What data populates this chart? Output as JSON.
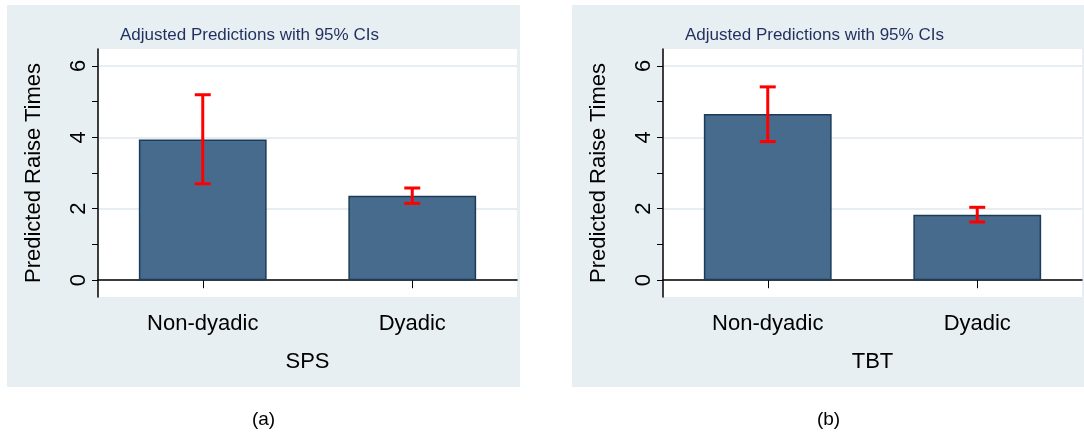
{
  "chart_data": [
    {
      "type": "bar",
      "title": "Adjusted Predictions with 95% CIs",
      "xlabel": "SPS",
      "ylabel": "Predicted Raise Times",
      "categories": [
        "Non-dyadic",
        "Dyadic"
      ],
      "values": [
        3.94,
        2.36
      ],
      "errors": [
        [
          2.7,
          5.19
        ],
        [
          2.15,
          2.58
        ]
      ],
      "color": "#476b8d",
      "ylim": [
        -0.47,
        6.47
      ],
      "yticks": [
        0,
        {
          "value": 1,
          "label": null
        },
        2,
        {
          "value": 3,
          "label": null
        },
        4,
        {
          "value": 5,
          "label": null
        },
        6
      ],
      "grid": "y",
      "annotations": [
        "(a)"
      ]
    },
    {
      "type": "bar",
      "title": "Adjusted Predictions with 95% CIs",
      "xlabel": "TBT",
      "ylabel": "Predicted Raise Times",
      "categories": [
        "Non-dyadic",
        "Dyadic"
      ],
      "values": [
        4.65,
        1.83
      ],
      "errors": [
        [
          3.88,
          5.41
        ],
        [
          1.63,
          2.04
        ]
      ],
      "color": "#476b8d",
      "ylim": [
        -0.47,
        6.47
      ],
      "yticks": [
        0,
        {
          "value": 1,
          "label": null
        },
        2,
        {
          "value": 3,
          "label": null
        },
        4,
        {
          "value": 5,
          "label": null
        },
        6
      ],
      "grid": "y",
      "annotations": [
        "(b)"
      ]
    }
  ]
}
